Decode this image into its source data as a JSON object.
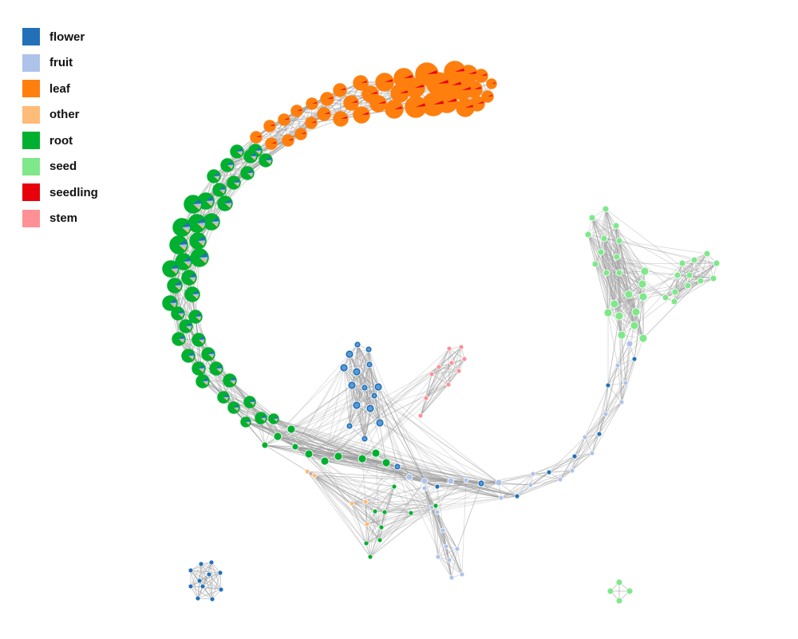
{
  "legend": {
    "items": [
      {
        "label": "flower",
        "color": "#2170b8"
      },
      {
        "label": "fruit",
        "color": "#aec3ea"
      },
      {
        "label": "leaf",
        "color": "#ff7f0e"
      },
      {
        "label": "other",
        "color": "#ffbb78"
      },
      {
        "label": "root",
        "color": "#00b02e"
      },
      {
        "label": "seed",
        "color": "#7fe88a"
      },
      {
        "label": "seedling",
        "color": "#e8000b"
      },
      {
        "label": "stem",
        "color": "#ff9096"
      }
    ]
  },
  "network": {
    "edge_color": "#999999",
    "clusters": [
      "leaf",
      "root",
      "flower",
      "stem",
      "seed",
      "fruit",
      "other"
    ]
  }
}
